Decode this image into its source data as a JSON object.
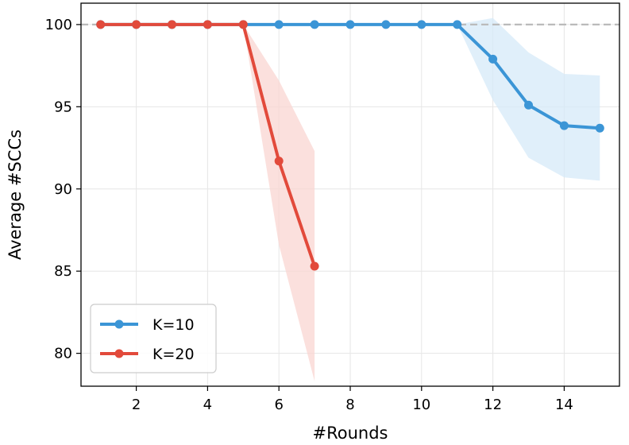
{
  "chart_data": {
    "type": "line",
    "xlabel": "#Rounds",
    "ylabel": "Average #SCCs",
    "xlim": [
      0.45,
      15.55
    ],
    "ylim": [
      78.0,
      101.3
    ],
    "xticks": [
      2,
      4,
      6,
      8,
      10,
      12,
      14
    ],
    "yticks": [
      80,
      85,
      90,
      95,
      100
    ],
    "grid": true,
    "legend_position": "bottom-left",
    "reference_line": {
      "y": 100,
      "style": "dashed",
      "color": "#bbbbbb"
    },
    "series": [
      {
        "name": "K=10",
        "color": "#3b95d6",
        "band_color": "#d6e9f8",
        "x": [
          1,
          2,
          3,
          4,
          5,
          6,
          7,
          8,
          9,
          10,
          11,
          12,
          13,
          14,
          15
        ],
        "y": [
          100,
          100,
          100,
          100,
          100,
          100,
          100,
          100,
          100,
          100,
          100,
          97.9,
          95.1,
          93.85,
          93.7
        ],
        "lower": [
          100,
          100,
          100,
          100,
          100,
          100,
          100,
          100,
          100,
          100,
          100,
          95.4,
          91.9,
          90.7,
          90.5
        ],
        "upper": [
          100,
          100,
          100,
          100,
          100,
          100,
          100,
          100,
          100,
          100,
          100,
          100.4,
          98.3,
          97.0,
          96.9
        ]
      },
      {
        "name": "K=20",
        "color": "#e24a3b",
        "band_color": "#f9d6d2",
        "x": [
          1,
          2,
          3,
          4,
          5,
          6,
          7
        ],
        "y": [
          100,
          100,
          100,
          100,
          100,
          91.7,
          85.3
        ],
        "lower": [
          100,
          100,
          100,
          100,
          100,
          86.6,
          78.3
        ],
        "upper": [
          100,
          100,
          100,
          100,
          100,
          96.6,
          92.3
        ]
      }
    ]
  }
}
